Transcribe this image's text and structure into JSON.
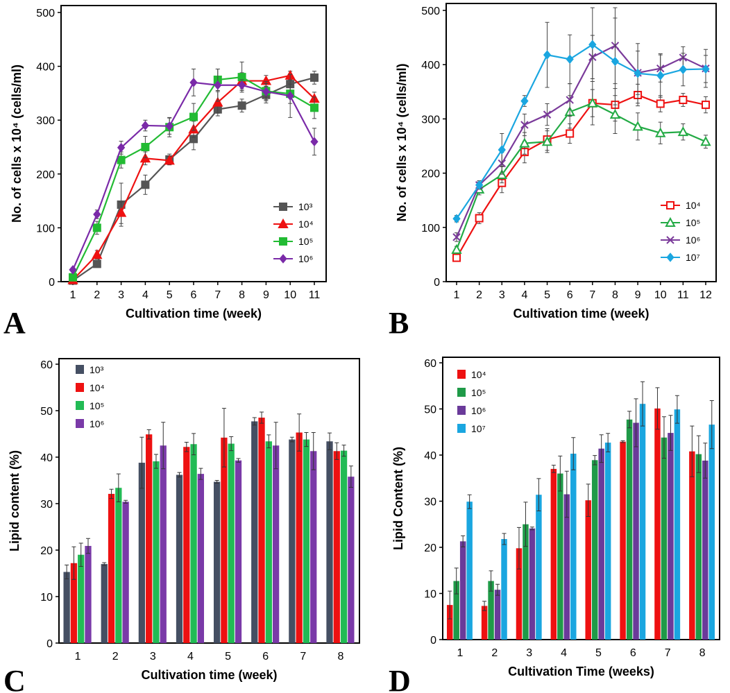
{
  "chart_data": [
    {
      "id": "A",
      "type": "line",
      "panel_label": "A",
      "xlabel": "Cultivation time (week)",
      "ylabel": "No. of cells x 10⁴ (cells/ml)",
      "x": [
        1,
        2,
        3,
        4,
        5,
        6,
        7,
        8,
        9,
        10,
        11
      ],
      "ylim": [
        0,
        500
      ],
      "yticks": [
        0,
        100,
        200,
        300,
        400,
        500
      ],
      "legend_position": "bottom-right",
      "series": [
        {
          "name": "10³",
          "color": "#555555",
          "marker": "square",
          "values": [
            2,
            33,
            143,
            180,
            227,
            265,
            320,
            327,
            347,
            367,
            379
          ],
          "errors": [
            3,
            6,
            40,
            18,
            10,
            20,
            12,
            12,
            15,
            15,
            12
          ]
        },
        {
          "name": "10⁴",
          "color": "#ee1111",
          "marker": "triangle",
          "values": [
            3,
            50,
            128,
            229,
            225,
            283,
            333,
            373,
            373,
            383,
            340
          ],
          "errors": [
            3,
            8,
            20,
            12,
            8,
            15,
            20,
            15,
            10,
            8,
            12
          ]
        },
        {
          "name": "10⁵",
          "color": "#22bb33",
          "marker": "square",
          "values": [
            8,
            100,
            226,
            250,
            287,
            306,
            375,
            380,
            354,
            349,
            323
          ],
          "errors": [
            3,
            12,
            15,
            20,
            18,
            25,
            20,
            28,
            18,
            18,
            20
          ]
        },
        {
          "name": "10⁶",
          "color": "#7a2aa8",
          "marker": "diamond",
          "values": [
            22,
            125,
            249,
            290,
            289,
            370,
            365,
            365,
            353,
            345,
            260
          ],
          "errors": [
            3,
            8,
            12,
            10,
            15,
            25,
            30,
            10,
            15,
            40,
            25
          ]
        }
      ]
    },
    {
      "id": "B",
      "type": "line",
      "panel_label": "B",
      "xlabel": "Cultivation time (week)",
      "ylabel": "No. of cells x 10⁴ (cells/ml)",
      "x": [
        1,
        2,
        3,
        4,
        5,
        6,
        7,
        8,
        9,
        10,
        11,
        12
      ],
      "ylim": [
        0,
        500
      ],
      "yticks": [
        0,
        100,
        200,
        300,
        400,
        500
      ],
      "legend_position": "bottom-right",
      "series": [
        {
          "name": "10⁴",
          "color": "#ee1111",
          "marker": "square-open",
          "values": [
            44,
            117,
            182,
            239,
            262,
            273,
            329,
            326,
            344,
            328,
            335,
            326
          ],
          "errors": [
            5,
            10,
            18,
            20,
            20,
            18,
            25,
            30,
            20,
            15,
            12,
            15
          ]
        },
        {
          "name": "10⁵",
          "color": "#22aa44",
          "marker": "triangle-open",
          "values": [
            59,
            170,
            197,
            255,
            258,
            313,
            329,
            308,
            286,
            274,
            276,
            258
          ],
          "errors": [
            6,
            10,
            15,
            20,
            20,
            30,
            40,
            35,
            25,
            20,
            15,
            12
          ]
        },
        {
          "name": "10⁶",
          "color": "#7a3a9a",
          "marker": "cross",
          "values": [
            82,
            178,
            218,
            289,
            308,
            335,
            414,
            435,
            385,
            393,
            413,
            393
          ],
          "errors": [
            8,
            8,
            20,
            20,
            20,
            30,
            40,
            70,
            40,
            25,
            20,
            35
          ]
        },
        {
          "name": "10⁷",
          "color": "#1aa6e0",
          "marker": "diamond",
          "values": [
            116,
            178,
            243,
            333,
            418,
            410,
            437,
            406,
            384,
            380,
            391,
            392
          ],
          "errors": [
            6,
            6,
            30,
            10,
            60,
            45,
            68,
            80,
            55,
            40,
            30,
            25
          ]
        }
      ]
    },
    {
      "id": "C",
      "type": "bar",
      "panel_label": "C",
      "xlabel": "Cultivation time (week)",
      "ylabel": "Lipid content (%)",
      "categories": [
        "1",
        "2",
        "3",
        "4",
        "5",
        "6",
        "7",
        "8"
      ],
      "ylim": [
        0,
        60
      ],
      "yticks": [
        0,
        10,
        20,
        30,
        40,
        50,
        60
      ],
      "legend_position": "top-left",
      "series": [
        {
          "name": "10³",
          "color": "#454f63",
          "values": [
            15.3,
            17.0,
            38.8,
            36.2,
            34.7,
            47.7,
            43.8,
            43.4
          ],
          "errors": [
            1.5,
            0.3,
            5.5,
            0.5,
            0.3,
            0.8,
            0.5,
            1.8
          ]
        },
        {
          "name": "10⁴",
          "color": "#ee1111",
          "values": [
            17.2,
            32.1,
            44.9,
            42.2,
            44.2,
            48.5,
            45.3,
            41.3
          ],
          "errors": [
            3.5,
            1.0,
            1.0,
            1.0,
            6.3,
            1.2,
            4.0,
            1.8
          ]
        },
        {
          "name": "10⁵",
          "color": "#22bb55",
          "values": [
            19.0,
            33.4,
            39.1,
            42.8,
            42.9,
            43.4,
            43.8,
            41.4
          ],
          "errors": [
            2.5,
            3.0,
            1.5,
            2.3,
            1.5,
            1.4,
            1.5,
            1.2
          ]
        },
        {
          "name": "10⁶",
          "color": "#7a3aa8",
          "values": [
            20.9,
            30.4,
            42.5,
            36.4,
            39.3,
            42.5,
            41.3,
            35.8
          ],
          "errors": [
            1.6,
            0.3,
            5.0,
            1.2,
            0.4,
            5.0,
            4.0,
            2.3
          ]
        }
      ]
    },
    {
      "id": "D",
      "type": "bar",
      "panel_label": "D",
      "xlabel": "Cultivation Time (weeks)",
      "ylabel": "Lipid Content (%)",
      "categories": [
        "1",
        "2",
        "3",
        "4",
        "5",
        "6",
        "7",
        "8"
      ],
      "ylim": [
        0,
        60
      ],
      "yticks": [
        0,
        10,
        20,
        30,
        40,
        50,
        60
      ],
      "legend_position": "top-left",
      "series": [
        {
          "name": "10⁴",
          "color": "#ee1111",
          "values": [
            7.5,
            7.3,
            19.8,
            37.0,
            30.2,
            42.9,
            50.1,
            40.8
          ],
          "errors": [
            3.0,
            1.0,
            4.5,
            0.8,
            3.5,
            0.2,
            4.5,
            5.5
          ]
        },
        {
          "name": "10⁵",
          "color": "#1f9a48",
          "values": [
            12.7,
            12.7,
            25.0,
            36.0,
            38.9,
            47.7,
            43.8,
            40.2
          ],
          "errors": [
            2.8,
            2.2,
            4.8,
            3.8,
            1.0,
            1.8,
            4.5,
            4.0
          ]
        },
        {
          "name": "10⁶",
          "color": "#6a3a9a",
          "values": [
            21.3,
            10.8,
            24.1,
            31.5,
            41.4,
            47.0,
            44.8,
            38.8
          ],
          "errors": [
            1.2,
            1.2,
            0.3,
            5.0,
            3.0,
            5.2,
            3.8,
            3.8
          ]
        },
        {
          "name": "10⁷",
          "color": "#1aa6e0",
          "values": [
            29.9,
            21.8,
            31.4,
            40.3,
            42.7,
            51.1,
            49.9,
            46.6
          ],
          "errors": [
            1.5,
            1.2,
            3.5,
            3.5,
            2.0,
            4.8,
            3.0,
            5.2
          ]
        }
      ]
    }
  ]
}
